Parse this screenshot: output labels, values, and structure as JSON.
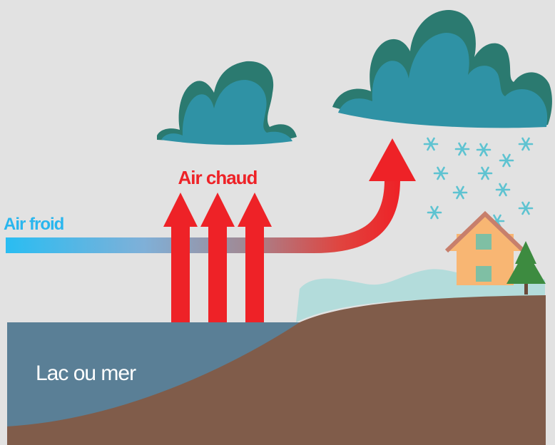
{
  "labels": {
    "warm_air": "Air chaud",
    "cold_air": "Air froid",
    "water": "Lac ou mer"
  }
}
